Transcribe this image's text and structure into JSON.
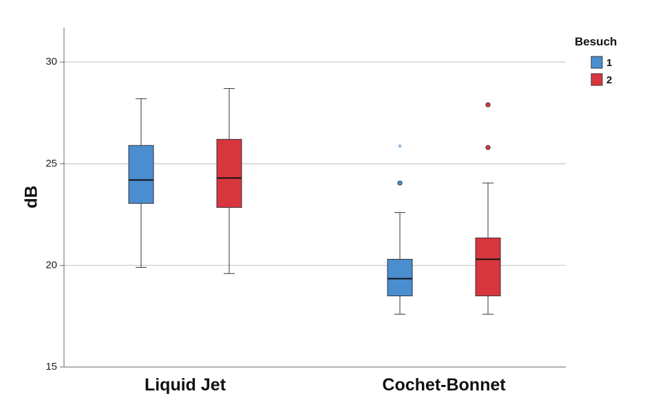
{
  "chart_data": {
    "type": "boxplot",
    "title": "",
    "xlabel": "",
    "ylabel": "dB",
    "ylim": [
      15,
      31.7
    ],
    "yticks": [
      15,
      20,
      25,
      30
    ],
    "grid": true,
    "categories": [
      "Liquid Jet",
      "Cochet-Bonnet"
    ],
    "legend": {
      "title": "Besuch",
      "position": "top-right",
      "entries": [
        {
          "label": "1",
          "color": "#4a8ed0"
        },
        {
          "label": "2",
          "color": "#d8363e"
        }
      ]
    },
    "series": [
      {
        "name": "1",
        "color": "#4a8ed0",
        "boxes": [
          {
            "category": "Liquid Jet",
            "whisker_low": 19.9,
            "q1": 23.05,
            "median": 24.2,
            "q3": 25.9,
            "whisker_high": 28.2,
            "outliers": [],
            "extremes": []
          },
          {
            "category": "Cochet-Bonnet",
            "whisker_low": 17.6,
            "q1": 18.5,
            "median": 19.35,
            "q3": 20.3,
            "whisker_high": 22.6,
            "outliers": [
              24.05
            ],
            "extremes": [
              25.8
            ]
          }
        ]
      },
      {
        "name": "2",
        "color": "#d8363e",
        "boxes": [
          {
            "category": "Liquid Jet",
            "whisker_low": 19.6,
            "q1": 22.85,
            "median": 24.3,
            "q3": 26.2,
            "whisker_high": 28.7,
            "outliers": [],
            "extremes": []
          },
          {
            "category": "Cochet-Bonnet",
            "whisker_low": 17.6,
            "q1": 18.5,
            "median": 20.3,
            "q3": 21.35,
            "whisker_high": 24.05,
            "outliers": [
              25.8,
              27.9
            ],
            "extremes": []
          }
        ]
      }
    ]
  }
}
